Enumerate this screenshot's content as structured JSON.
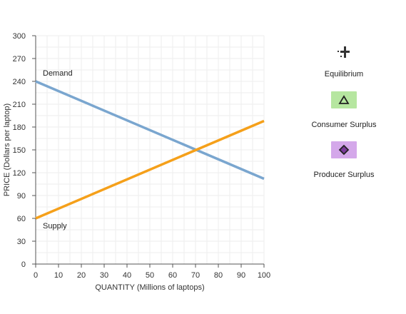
{
  "chart_data": {
    "type": "line",
    "xlabel": "QUANTITY (Millions of laptops)",
    "ylabel": "PRICE (Dollars per laptop)",
    "xlim": [
      0,
      100
    ],
    "ylim": [
      0,
      300
    ],
    "x_ticks": [
      0,
      10,
      20,
      30,
      40,
      50,
      60,
      70,
      80,
      90,
      100
    ],
    "y_ticks": [
      0,
      30,
      60,
      90,
      120,
      150,
      180,
      210,
      240,
      270,
      300
    ],
    "grid": true,
    "series": [
      {
        "name": "Demand",
        "color": "#7aa6cf",
        "points": [
          [
            0,
            240
          ],
          [
            100,
            112
          ]
        ]
      },
      {
        "name": "Supply",
        "color": "#f5a01a",
        "points": [
          [
            0,
            60
          ],
          [
            100,
            188
          ]
        ]
      }
    ]
  },
  "legend": {
    "equilibrium": {
      "label": "Equilibrium",
      "icon": "plus-with-dots-icon",
      "color": "#333333"
    },
    "consumer_surplus": {
      "label": "Consumer Surplus",
      "icon": "triangle-icon",
      "color": "#b6e6a0"
    },
    "producer_surplus": {
      "label": "Producer Surplus",
      "icon": "diamond-icon",
      "color": "#d4a8ea"
    }
  }
}
